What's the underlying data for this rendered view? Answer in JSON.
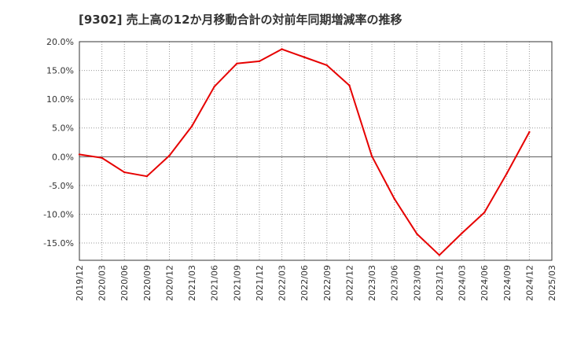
{
  "chart_data": {
    "type": "line",
    "title": "[9302]  売上高の12か月移動合計の対前年同期増減率の推移",
    "xlabel": "",
    "ylabel": "",
    "ylim": [
      -18,
      20
    ],
    "y_ticks": [
      20,
      15,
      10,
      5,
      0,
      -5,
      -10,
      -15
    ],
    "y_tick_labels": [
      "20.0%",
      "15.0%",
      "10.0%",
      "5.0%",
      "0.0%",
      "-5.0%",
      "-10.0%",
      "-15.0%"
    ],
    "categories": [
      "2019/12",
      "2020/03",
      "2020/06",
      "2020/09",
      "2020/12",
      "2021/03",
      "2021/06",
      "2021/09",
      "2021/12",
      "2022/03",
      "2022/06",
      "2022/09",
      "2022/12",
      "2023/03",
      "2023/06",
      "2023/09",
      "2023/12",
      "2024/03",
      "2024/06",
      "2024/09",
      "2024/12",
      "2025/03"
    ],
    "grid": true,
    "legend": "none",
    "series": [
      {
        "name": "増減率",
        "color": "#e60000",
        "values": [
          0.4,
          -0.2,
          -2.7,
          -3.4,
          0.2,
          5.3,
          12.2,
          16.2,
          16.6,
          18.7,
          17.3,
          15.9,
          12.4,
          0.1,
          -7.3,
          -13.4,
          -17.1,
          -13.3,
          -9.7,
          -2.9,
          4.3,
          null
        ]
      }
    ]
  }
}
